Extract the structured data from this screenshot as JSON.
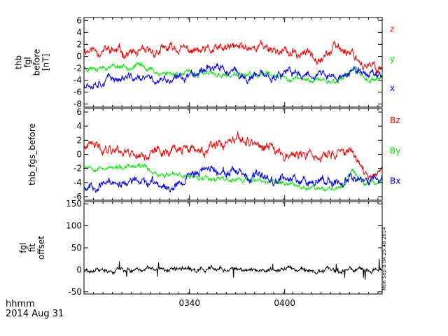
{
  "chart_data": [
    {
      "type": "line",
      "ylabel_lines": [
        "thb",
        "fgl",
        "before",
        "[nT]"
      ],
      "ylim": [
        -8.5,
        6.5
      ],
      "yticks": [
        -8,
        -6,
        -4,
        -2,
        0,
        2,
        4,
        6
      ],
      "xlim": [
        0.0,
        1.0
      ],
      "series": [
        {
          "name": "z",
          "color": "#ff0000",
          "base": [
            [
              0.0,
              1.2
            ],
            [
              0.1,
              0.9
            ],
            [
              0.2,
              0.3
            ],
            [
              0.3,
              1.3
            ],
            [
              0.4,
              0.7
            ],
            [
              0.5,
              1.4
            ],
            [
              0.6,
              1.8
            ],
            [
              0.7,
              0.3
            ],
            [
              0.75,
              0.5
            ],
            [
              0.8,
              0.2
            ],
            [
              0.85,
              1.4
            ],
            [
              0.9,
              0.8
            ],
            [
              0.95,
              -2.0
            ],
            [
              1.0,
              -1.8
            ]
          ],
          "noise": 0.9,
          "seed": 11
        },
        {
          "name": "y",
          "color": "#00ee00",
          "base": [
            [
              0.0,
              -1.9
            ],
            [
              0.1,
              -1.6
            ],
            [
              0.2,
              -1.6
            ],
            [
              0.25,
              -2.8
            ],
            [
              0.3,
              -2.8
            ],
            [
              0.4,
              -3.0
            ],
            [
              0.5,
              -3.2
            ],
            [
              0.6,
              -3.2
            ],
            [
              0.7,
              -3.8
            ],
            [
              0.8,
              -4.0
            ],
            [
              0.85,
              -4.2
            ],
            [
              0.9,
              -2.2
            ],
            [
              0.95,
              -3.8
            ],
            [
              1.0,
              -3.5
            ]
          ],
          "noise": 0.5,
          "seed": 23
        },
        {
          "name": "x",
          "color": "#0000ff",
          "base": [
            [
              0.0,
              -4.5
            ],
            [
              0.1,
              -3.6
            ],
            [
              0.2,
              -3.8
            ],
            [
              0.3,
              -4.2
            ],
            [
              0.35,
              -3.0
            ],
            [
              0.42,
              -1.5
            ],
            [
              0.48,
              -2.5
            ],
            [
              0.55,
              -3.8
            ],
            [
              0.62,
              -3.2
            ],
            [
              0.7,
              -3.0
            ],
            [
              0.78,
              -2.8
            ],
            [
              0.85,
              -3.8
            ],
            [
              0.9,
              -2.5
            ],
            [
              1.0,
              -3.0
            ]
          ],
          "noise": 0.8,
          "seed": 37
        }
      ]
    },
    {
      "type": "line",
      "ylabel_lines": [
        "thb_fgs_before"
      ],
      "ylim": [
        -6.5,
        6.5
      ],
      "yticks": [
        -6,
        -4,
        -2,
        0,
        2,
        4,
        6
      ],
      "xlim": [
        0.0,
        1.0
      ],
      "series": [
        {
          "name": "Bz",
          "color": "#ff0000",
          "base": [
            [
              0.0,
              1.0
            ],
            [
              0.1,
              0.9
            ],
            [
              0.2,
              0.0
            ],
            [
              0.3,
              0.8
            ],
            [
              0.4,
              0.4
            ],
            [
              0.5,
              1.6
            ],
            [
              0.55,
              2.0
            ],
            [
              0.6,
              1.0
            ],
            [
              0.7,
              0.0
            ],
            [
              0.8,
              -0.5
            ],
            [
              0.85,
              0.5
            ],
            [
              0.9,
              0.2
            ],
            [
              0.95,
              -2.8
            ],
            [
              1.0,
              -2.5
            ]
          ],
          "noise": 0.8,
          "seed": 41
        },
        {
          "name": "By",
          "color": "#00ee00",
          "base": [
            [
              0.0,
              -1.6
            ],
            [
              0.1,
              -2.0
            ],
            [
              0.2,
              -1.8
            ],
            [
              0.25,
              -2.8
            ],
            [
              0.3,
              -3.0
            ],
            [
              0.4,
              -3.2
            ],
            [
              0.5,
              -3.6
            ],
            [
              0.6,
              -3.8
            ],
            [
              0.7,
              -4.2
            ],
            [
              0.8,
              -4.8
            ],
            [
              0.85,
              -5.0
            ],
            [
              0.9,
              -2.5
            ],
            [
              0.95,
              -4.3
            ],
            [
              1.0,
              -4.0
            ]
          ],
          "noise": 0.4,
          "seed": 53
        },
        {
          "name": "Bx",
          "color": "#0000ff",
          "base": [
            [
              0.0,
              -4.5
            ],
            [
              0.1,
              -4.0
            ],
            [
              0.2,
              -4.0
            ],
            [
              0.3,
              -4.5
            ],
            [
              0.35,
              -3.0
            ],
            [
              0.42,
              -1.8
            ],
            [
              0.48,
              -2.5
            ],
            [
              0.55,
              -3.5
            ],
            [
              0.62,
              -3.2
            ],
            [
              0.7,
              -3.5
            ],
            [
              0.8,
              -3.5
            ],
            [
              0.85,
              -4.0
            ],
            [
              0.9,
              -3.0
            ],
            [
              1.0,
              -3.5
            ]
          ],
          "noise": 0.7,
          "seed": 67
        }
      ]
    },
    {
      "type": "line",
      "ylabel_lines": [
        "fgl",
        "fit",
        "offset"
      ],
      "ylim": [
        -55,
        155
      ],
      "yticks": [
        -50,
        0,
        50,
        100,
        150
      ],
      "xlim": [
        0.0,
        1.0
      ],
      "series": [
        {
          "name": "",
          "color": "#000000",
          "base": [
            [
              0.0,
              0
            ],
            [
              1.0,
              0
            ]
          ],
          "noise": 6,
          "spikes": 22,
          "seed": 79
        }
      ]
    }
  ],
  "x_axis": {
    "tick_labels": [
      {
        "label": "0340",
        "frac": 0.354
      },
      {
        "label": "0400",
        "frac": 0.673
      }
    ],
    "minor_tick_step": 0.0318
  },
  "footer": {
    "unit_label": "hhmm",
    "date_label": "2014 Aug 31",
    "timestamp": "Mon Sep  8 04:25:48 2014"
  },
  "colors": {
    "red": "#ff0000",
    "green": "#00ee00",
    "blue": "#0000ff",
    "black": "#000000"
  }
}
